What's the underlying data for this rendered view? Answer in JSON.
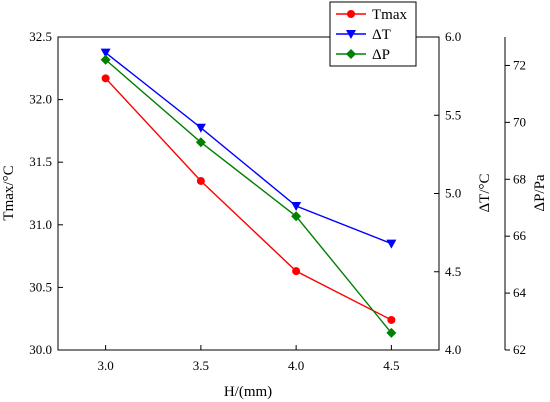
{
  "chart_data": {
    "type": "line",
    "x": [
      3.0,
      3.5,
      4.0,
      4.5
    ],
    "x_tick_labels": [
      "3.0",
      "3.5",
      "4.0",
      "4.5"
    ],
    "xlabel": "H/(mm)",
    "xlim": [
      2.75,
      4.75
    ],
    "axes": {
      "left": {
        "label": "Tmax/°C",
        "ylim": [
          30.0,
          32.5
        ],
        "ticks": [
          30.0,
          30.5,
          31.0,
          31.5,
          32.0,
          32.5
        ],
        "tick_labels": [
          "30.0",
          "30.5",
          "31.0",
          "31.5",
          "32.0",
          "32.5"
        ]
      },
      "right1": {
        "label": "ΔT/°C",
        "ylim": [
          4.0,
          6.0
        ],
        "ticks": [
          4.0,
          4.5,
          5.0,
          5.5,
          6.0
        ],
        "tick_labels": [
          "4.0",
          "4.5",
          "5.0",
          "5.5",
          "6.0"
        ]
      },
      "right2": {
        "label": "ΔP/Pa",
        "ylim": [
          62,
          73
        ],
        "ticks": [
          62,
          64,
          66,
          68,
          70,
          72
        ],
        "tick_labels": [
          "62",
          "64",
          "66",
          "68",
          "70",
          "72"
        ]
      }
    },
    "series": [
      {
        "name": "Tmax",
        "axis": "left",
        "color": "#ff0000",
        "marker": "circle",
        "values": [
          32.17,
          31.35,
          30.63,
          30.24
        ]
      },
      {
        "name": "ΔT",
        "axis": "right1",
        "color": "#0000ff",
        "marker": "triangle-down",
        "values": [
          5.9,
          5.42,
          4.92,
          4.68
        ]
      },
      {
        "name": "ΔP",
        "axis": "right2",
        "color": "#008000",
        "marker": "diamond",
        "values": [
          72.2,
          69.3,
          66.7,
          62.6
        ]
      }
    ],
    "legend": {
      "placement": "top-right",
      "entries": [
        "Tmax",
        "ΔT",
        "ΔP"
      ]
    },
    "grid": false
  }
}
